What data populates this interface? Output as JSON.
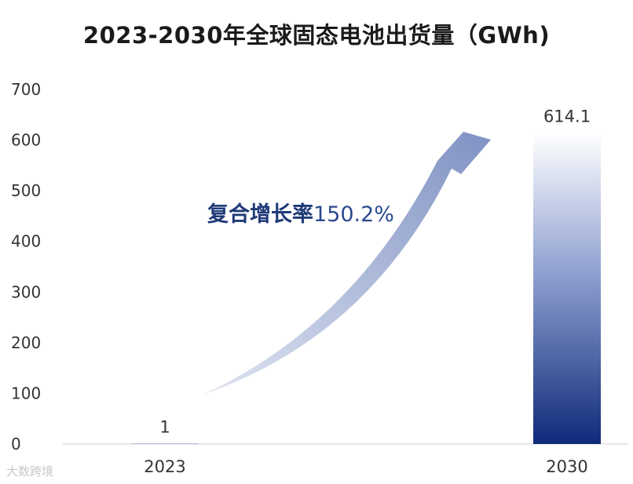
{
  "chart_data": {
    "type": "bar",
    "title": "2023-2030年全球固态电池出货量（GWh)",
    "categories": [
      "2023",
      "2030"
    ],
    "values": [
      1,
      614.1
    ],
    "value_labels": [
      "1",
      "614.1"
    ],
    "ylim": [
      0,
      700
    ],
    "yticks": [
      0,
      100,
      200,
      300,
      400,
      500,
      600,
      700
    ],
    "grid": false,
    "annotation": {
      "label": "复合增长率",
      "value": "150.2%"
    },
    "colors": {
      "bar_top": "#ffffff",
      "bar_bottom": "#0f2a7a",
      "arrow_start": "#dfe4f1",
      "arrow_end": "#7f92c3",
      "annotation_label": "#1f3a78",
      "annotation_value": "#2c4a8f"
    }
  },
  "watermark": "大数跨境"
}
